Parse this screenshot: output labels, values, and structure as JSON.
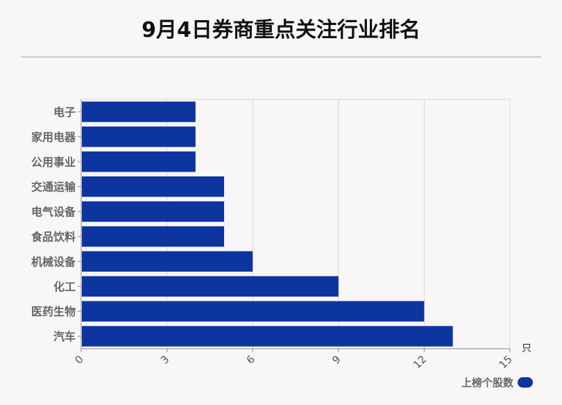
{
  "title": "9月4日券商重点关注行业排名",
  "chart_data": {
    "type": "bar",
    "orientation": "horizontal",
    "categories": [
      "电子",
      "家用电器",
      "公用事业",
      "交通运输",
      "电气设备",
      "食品饮料",
      "机械设备",
      "化工",
      "医药生物",
      "汽车"
    ],
    "series": [
      {
        "name": "上榜个股数",
        "values": [
          4,
          4,
          4,
          5,
          5,
          5,
          6,
          9,
          12,
          13
        ]
      }
    ],
    "xlim": [
      0,
      15
    ],
    "xticks": [
      "0",
      "3",
      "6",
      "9",
      "12",
      "15"
    ],
    "xunit": "只",
    "grid": true,
    "legend": "bottom-right",
    "color": "#0d35a0"
  }
}
